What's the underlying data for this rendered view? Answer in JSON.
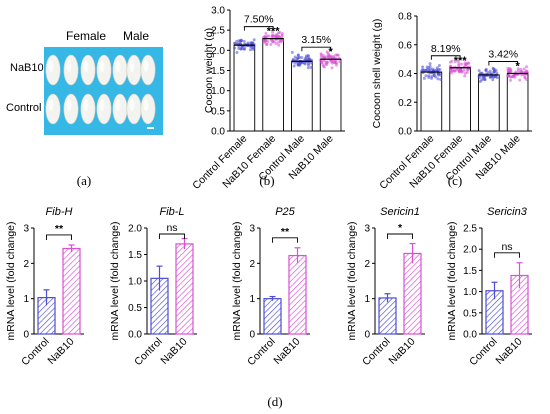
{
  "photo": {
    "header_female": "Female",
    "header_male": "Male",
    "row_top": "NaB10",
    "row_bottom": "Control",
    "background_color": "#35b8e6"
  },
  "panel_labels": [
    "(a)",
    "(b)",
    "(c)",
    "(d)"
  ],
  "colors": {
    "control": "#4d4dd6",
    "nab10": "#d94fd6",
    "control_fill": "#e9e9f7",
    "nab10_fill": "#f8e4f6"
  },
  "chart_data": [
    {
      "panel": "b",
      "type": "bar",
      "ylabel": "Cocoon weight (g)",
      "ylim": [
        0,
        3
      ],
      "yticks": [
        0.0,
        0.5,
        1.0,
        1.5,
        2.0,
        2.5,
        3.0
      ],
      "ytick_labels": [
        "0.0",
        "0.5",
        "1.0",
        "1.5",
        "2.0",
        "2.5",
        "3.0"
      ],
      "categories": [
        "Control Female",
        "NaB10 Female",
        "Control Male",
        "NaB10 Male"
      ],
      "values": [
        2.13,
        2.29,
        1.73,
        1.78
      ],
      "significance": [
        "",
        "***",
        "",
        "*"
      ],
      "comparisons": [
        {
          "from": 0,
          "to": 1,
          "label": "7.50%"
        },
        {
          "from": 2,
          "to": 3,
          "label": "3.15%"
        }
      ],
      "scatter_spread": 0.16
    },
    {
      "panel": "c",
      "type": "bar",
      "ylabel": "Cocoon shell weight (g)",
      "ylim": [
        0,
        0.8
      ],
      "yticks": [
        0.0,
        0.2,
        0.4,
        0.6,
        0.8
      ],
      "ytick_labels": [
        "0.0",
        "0.2",
        "0.4",
        "0.6",
        "0.8"
      ],
      "categories": [
        "Control Female",
        "NaB10 Female",
        "Control Male",
        "NaB10 Male"
      ],
      "values": [
        0.41,
        0.44,
        0.39,
        0.4
      ],
      "significance": [
        "",
        "***",
        "",
        "*"
      ],
      "comparisons": [
        {
          "from": 0,
          "to": 1,
          "label": "8.19%"
        },
        {
          "from": 2,
          "to": 3,
          "label": "3.42%"
        }
      ],
      "scatter_spread": 0.045
    },
    {
      "panel": "d1",
      "type": "bar",
      "title": "Fib-H",
      "ylabel": "mRNA level (fold change)",
      "ylim": [
        0,
        3
      ],
      "yticks": [
        0,
        1,
        2,
        3
      ],
      "ytick_labels": [
        "0",
        "1",
        "2",
        "3"
      ],
      "categories": [
        "Control",
        "NaB10"
      ],
      "values": [
        1.03,
        2.42
      ],
      "errors": [
        0.22,
        0.1
      ],
      "significance_label": "**"
    },
    {
      "panel": "d2",
      "type": "bar",
      "title": "Fib-L",
      "ylabel": "mRNA level (fold change)",
      "ylim": [
        0,
        2
      ],
      "yticks": [
        0,
        0.5,
        1.0,
        1.5,
        2.0
      ],
      "ytick_labels": [
        "0.0",
        "0.5",
        "1.0",
        "1.5",
        "2.0"
      ],
      "categories": [
        "Control",
        "NaB10"
      ],
      "values": [
        1.05,
        1.7
      ],
      "errors": [
        0.23,
        0.1
      ],
      "significance_label": "ns"
    },
    {
      "panel": "d3",
      "type": "bar",
      "title": "P25",
      "ylabel": "mRNA level (fold change)",
      "ylim": [
        0,
        3
      ],
      "yticks": [
        0,
        1,
        2,
        3
      ],
      "ytick_labels": [
        "0",
        "1",
        "2",
        "3"
      ],
      "categories": [
        "Control",
        "NaB10"
      ],
      "values": [
        1.0,
        2.22
      ],
      "errors": [
        0.06,
        0.22
      ],
      "significance_label": "**"
    },
    {
      "panel": "d4",
      "type": "bar",
      "title": "Sericin1",
      "ylabel": "mRNA level (fold change)",
      "ylim": [
        0,
        3
      ],
      "yticks": [
        0,
        1,
        2,
        3
      ],
      "ytick_labels": [
        "0",
        "1",
        "2",
        "3"
      ],
      "categories": [
        "Control",
        "NaB10"
      ],
      "values": [
        1.02,
        2.28
      ],
      "errors": [
        0.12,
        0.28
      ],
      "significance_label": "*"
    },
    {
      "panel": "d5",
      "type": "bar",
      "title": "Sericin3",
      "ylabel": "mRNA level (fold change)",
      "ylim": [
        0,
        2.5
      ],
      "yticks": [
        0,
        0.5,
        1.0,
        1.5,
        2.0,
        2.5
      ],
      "ytick_labels": [
        "0.0",
        "0.5",
        "1.0",
        "1.5",
        "2.0",
        "2.5"
      ],
      "categories": [
        "Control",
        "NaB10"
      ],
      "values": [
        1.02,
        1.38
      ],
      "errors": [
        0.2,
        0.3
      ],
      "significance_label": "ns"
    }
  ]
}
